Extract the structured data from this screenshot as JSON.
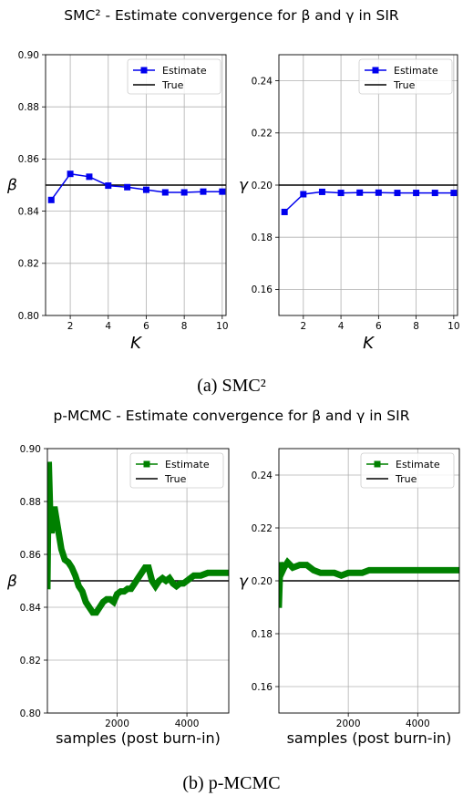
{
  "figure": {
    "title_a": "SMC² - Estimate convergence for β and γ in SIR",
    "title_b": "p-MCMC - Estimate convergence for β and γ in SIR",
    "caption_a": "(a) SMC²",
    "caption_b": "(b) p-MCMC"
  },
  "chart_data": [
    {
      "id": "smc2-beta",
      "type": "line",
      "xlabel": "K",
      "ylabel": "β",
      "xlim": [
        0.7,
        10.2
      ],
      "ylim": [
        0.8,
        0.9
      ],
      "xticks": [
        2,
        4,
        6,
        8,
        10
      ],
      "yticks": [
        0.8,
        0.82,
        0.84,
        0.86,
        0.88,
        0.9
      ],
      "ytick_labels": [
        "0.80",
        "0.82",
        "0.84",
        "0.86",
        "0.88",
        "0.90"
      ],
      "xtick_labels": [
        "2",
        "4",
        "6",
        "8",
        "10"
      ],
      "grid": true,
      "legend_position": "top-right",
      "series": [
        {
          "name": "Estimate",
          "color": "#0000ee",
          "marker": "square",
          "x": [
            1,
            2,
            3,
            4,
            5,
            6,
            7,
            8,
            9,
            10
          ],
          "y": [
            0.8443,
            0.8543,
            0.8532,
            0.8498,
            0.8492,
            0.8482,
            0.8472,
            0.8472,
            0.8475,
            0.8475
          ]
        },
        {
          "name": "True",
          "color": "#000000",
          "hline": 0.85
        }
      ]
    },
    {
      "id": "smc2-gamma",
      "type": "line",
      "xlabel": "K",
      "ylabel": "γ",
      "xlim": [
        0.7,
        10.2
      ],
      "ylim": [
        0.15,
        0.25
      ],
      "xticks": [
        2,
        4,
        6,
        8,
        10
      ],
      "yticks": [
        0.16,
        0.18,
        0.2,
        0.22,
        0.24
      ],
      "ytick_labels": [
        "0.16",
        "0.18",
        "0.20",
        "0.22",
        "0.24"
      ],
      "xtick_labels": [
        "2",
        "4",
        "6",
        "8",
        "10"
      ],
      "grid": true,
      "legend_position": "top-right",
      "series": [
        {
          "name": "Estimate",
          "color": "#0000ee",
          "marker": "square",
          "x": [
            1,
            2,
            3,
            4,
            5,
            6,
            7,
            8,
            9,
            10
          ],
          "y": [
            0.1897,
            0.1965,
            0.1974,
            0.197,
            0.1971,
            0.1971,
            0.197,
            0.197,
            0.197,
            0.197
          ]
        },
        {
          "name": "True",
          "color": "#000000",
          "hline": 0.2
        }
      ]
    },
    {
      "id": "pmcmc-beta",
      "type": "line",
      "xlabel": "samples (post burn-in)",
      "ylabel": "β",
      "xlim": [
        0,
        5200
      ],
      "ylim": [
        0.8,
        0.9
      ],
      "xticks": [
        2000,
        4000
      ],
      "yticks": [
        0.8,
        0.82,
        0.84,
        0.86,
        0.88,
        0.9
      ],
      "ytick_labels": [
        "0.80",
        "0.82",
        "0.84",
        "0.86",
        "0.88",
        "0.90"
      ],
      "xtick_labels": [
        "2000",
        "4000"
      ],
      "grid": true,
      "legend_position": "top-right",
      "series": [
        {
          "name": "Estimate",
          "color": "#008000",
          "marker": "square-dense",
          "x": [
            0,
            40,
            80,
            120,
            200,
            300,
            400,
            500,
            600,
            700,
            800,
            900,
            1000,
            1100,
            1200,
            1300,
            1400,
            1500,
            1600,
            1700,
            1800,
            1900,
            2000,
            2100,
            2200,
            2300,
            2400,
            2500,
            2600,
            2700,
            2800,
            2900,
            3000,
            3100,
            3200,
            3300,
            3400,
            3500,
            3600,
            3700,
            3800,
            3900,
            4000,
            4200,
            4400,
            4600,
            4800,
            5000,
            5200
          ],
          "y": [
            0.848,
            0.895,
            0.875,
            0.868,
            0.878,
            0.87,
            0.862,
            0.858,
            0.857,
            0.855,
            0.852,
            0.848,
            0.846,
            0.842,
            0.84,
            0.838,
            0.838,
            0.84,
            0.842,
            0.843,
            0.843,
            0.842,
            0.845,
            0.846,
            0.846,
            0.847,
            0.847,
            0.849,
            0.851,
            0.853,
            0.855,
            0.855,
            0.85,
            0.848,
            0.85,
            0.851,
            0.85,
            0.851,
            0.849,
            0.848,
            0.849,
            0.849,
            0.85,
            0.852,
            0.852,
            0.853,
            0.853,
            0.853,
            0.853
          ]
        },
        {
          "name": "True",
          "color": "#000000",
          "hline": 0.85
        }
      ]
    },
    {
      "id": "pmcmc-gamma",
      "type": "line",
      "xlabel": "samples (post burn-in)",
      "ylabel": "γ",
      "xlim": [
        0,
        5200
      ],
      "ylim": [
        0.15,
        0.25
      ],
      "xticks": [
        2000,
        4000
      ],
      "yticks": [
        0.16,
        0.18,
        0.2,
        0.22,
        0.24
      ],
      "ytick_labels": [
        "0.16",
        "0.18",
        "0.20",
        "0.22",
        "0.24"
      ],
      "xtick_labels": [
        "2000",
        "4000"
      ],
      "grid": true,
      "legend_position": "top-right",
      "series": [
        {
          "name": "Estimate",
          "color": "#008000",
          "marker": "square-dense",
          "x": [
            0,
            40,
            80,
            150,
            250,
            400,
            600,
            800,
            1000,
            1200,
            1400,
            1600,
            1800,
            2000,
            2200,
            2400,
            2600,
            2800,
            3000,
            3200,
            3400,
            3600,
            3800,
            4000,
            4200,
            4400,
            4600,
            4800,
            5000,
            5200
          ],
          "y": [
            0.191,
            0.207,
            0.203,
            0.205,
            0.207,
            0.205,
            0.206,
            0.206,
            0.204,
            0.203,
            0.203,
            0.203,
            0.202,
            0.203,
            0.203,
            0.203,
            0.204,
            0.204,
            0.204,
            0.204,
            0.204,
            0.204,
            0.204,
            0.204,
            0.204,
            0.204,
            0.204,
            0.204,
            0.204,
            0.204
          ]
        },
        {
          "name": "True",
          "color": "#000000",
          "hline": 0.2
        }
      ]
    }
  ]
}
